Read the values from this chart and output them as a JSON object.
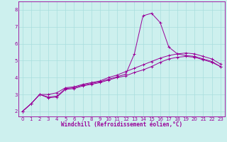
{
  "xlabel": "Windchill (Refroidissement éolien,°C)",
  "bg_color": "#cdf0ee",
  "line_color": "#990099",
  "xlim": [
    -0.5,
    23.5
  ],
  "ylim": [
    1.7,
    8.5
  ],
  "xticks": [
    0,
    1,
    2,
    3,
    4,
    5,
    6,
    7,
    8,
    9,
    10,
    11,
    12,
    13,
    14,
    15,
    16,
    17,
    18,
    19,
    20,
    21,
    22,
    23
  ],
  "yticks": [
    2,
    3,
    4,
    5,
    6,
    7,
    8
  ],
  "grid_color": "#a8dede",
  "series": [
    {
      "x": [
        0,
        1,
        2,
        3,
        4,
        5,
        6,
        7,
        8,
        9,
        10,
        11,
        12,
        13,
        14,
        15,
        16,
        17,
        18,
        19,
        20,
        21,
        22,
        23
      ],
      "y": [
        2.0,
        2.45,
        3.0,
        2.8,
        2.85,
        3.3,
        3.35,
        3.5,
        3.6,
        3.7,
        3.85,
        4.0,
        4.1,
        4.3,
        4.45,
        4.65,
        4.9,
        5.1,
        5.2,
        5.25,
        5.2,
        5.05,
        4.9,
        4.65
      ]
    },
    {
      "x": [
        0,
        1,
        2,
        3,
        4,
        5,
        6,
        7,
        8,
        9,
        10,
        11,
        12,
        13,
        14,
        15,
        16,
        17,
        18,
        19,
        20,
        21,
        22,
        23
      ],
      "y": [
        2.0,
        2.45,
        3.0,
        2.85,
        2.9,
        3.35,
        3.4,
        3.55,
        3.65,
        3.75,
        3.9,
        4.05,
        4.2,
        5.4,
        7.65,
        7.8,
        7.25,
        5.8,
        5.4,
        5.3,
        5.25,
        5.1,
        4.95,
        4.65
      ]
    },
    {
      "x": [
        0,
        1,
        2,
        3,
        4,
        5,
        6,
        7,
        8,
        9,
        10,
        11,
        12,
        13,
        14,
        15,
        16,
        17,
        18,
        19,
        20,
        21,
        22,
        23
      ],
      "y": [
        2.0,
        2.45,
        3.0,
        3.0,
        3.1,
        3.4,
        3.45,
        3.6,
        3.7,
        3.8,
        4.0,
        4.15,
        4.35,
        4.55,
        4.75,
        4.95,
        5.15,
        5.3,
        5.4,
        5.45,
        5.4,
        5.25,
        5.1,
        4.8
      ]
    }
  ]
}
